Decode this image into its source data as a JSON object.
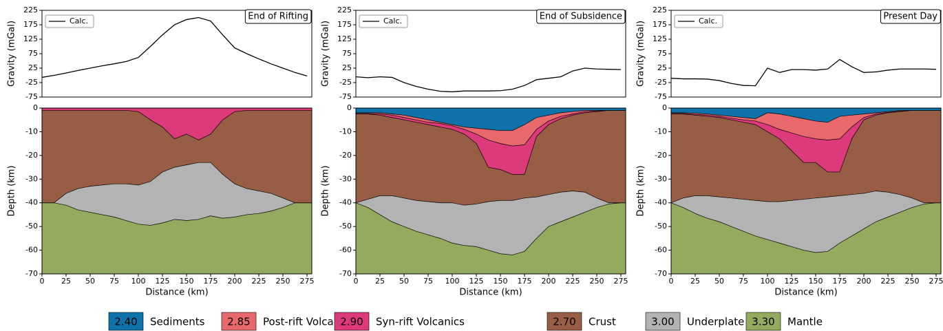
{
  "chart_data": [
    {
      "type": "line",
      "ylabel": "Gravity (mGal)",
      "annotation": "End of Rifting",
      "legend_position": "upper left",
      "x": [
        0,
        12.5,
        25,
        37.5,
        50,
        62.5,
        75,
        87.5,
        100,
        112.5,
        125,
        137.5,
        150,
        162.5,
        175,
        187.5,
        200,
        212.5,
        225,
        237.5,
        250,
        262.5,
        275
      ],
      "series": [
        {
          "name": "Calc.",
          "color": "#000000",
          "values": [
            -7,
            0,
            8,
            17,
            25,
            33,
            40,
            48,
            62,
            100,
            140,
            175,
            193,
            200,
            188,
            140,
            95,
            75,
            57,
            40,
            25,
            10,
            -2
          ]
        }
      ],
      "xlim": [
        0,
        280
      ],
      "ylim": [
        -75,
        225
      ],
      "yticks": [
        -75,
        -25,
        25,
        75,
        125,
        175,
        225
      ]
    },
    {
      "type": "section",
      "xlabel": "Distance (km)",
      "ylabel": "Depth (km)",
      "color": "#94aa5e",
      "x": [
        0,
        12.5,
        25,
        37.5,
        50,
        62.5,
        75,
        87.5,
        100,
        112.5,
        125,
        137.5,
        150,
        162.5,
        175,
        187.5,
        200,
        212.5,
        225,
        237.5,
        250,
        262.5,
        275
      ],
      "layers": [
        {
          "color": "#b3b3b3",
          "base": [
            -40,
            -40,
            -41,
            -43,
            -44,
            -45,
            -46,
            -47.5,
            -49,
            -49.5,
            -48.5,
            -47,
            -47.5,
            -47,
            -45.5,
            -46.5,
            -46,
            -45,
            -44.5,
            -43.5,
            -42,
            -40,
            -40
          ]
        },
        {
          "color": "#985e45",
          "base": [
            -40,
            -40,
            -36,
            -34,
            -33,
            -32.5,
            -32,
            -32,
            -32.5,
            -31,
            -27,
            -25,
            -24,
            -23,
            -23,
            -28,
            -32,
            -34,
            -35,
            -36,
            -38,
            -40,
            -40
          ]
        },
        {
          "color": "#dc3a7a",
          "base": [
            -1,
            -1,
            -1,
            -1,
            -1,
            -1,
            -1,
            -1,
            -1.5,
            -5,
            -8,
            -13,
            -11,
            -13.5,
            -11,
            -5,
            -1.5,
            -1,
            -1,
            -1,
            -1,
            -1,
            -1
          ]
        }
      ],
      "xlim": [
        0,
        280
      ],
      "ylim": [
        -70,
        0
      ],
      "xticks": [
        0,
        25,
        50,
        75,
        100,
        125,
        150,
        175,
        200,
        225,
        250,
        275
      ],
      "yticks": [
        -70,
        -60,
        -50,
        -40,
        -30,
        -20,
        -10,
        0
      ]
    },
    {
      "type": "line",
      "ylabel": "Gravity (mGal)",
      "annotation": "End of Subsidence",
      "legend_position": "upper left",
      "x": [
        0,
        12.5,
        25,
        37.5,
        50,
        62.5,
        75,
        87.5,
        100,
        112.5,
        125,
        137.5,
        150,
        162.5,
        175,
        187.5,
        200,
        212.5,
        225,
        237.5,
        250,
        262.5,
        275
      ],
      "series": [
        {
          "name": "Calc.",
          "color": "#000000",
          "values": [
            -5,
            -8,
            -5,
            -7,
            -25,
            -38,
            -48,
            -55,
            -57,
            -54,
            -54,
            -54,
            -53,
            -48,
            -35,
            -15,
            -10,
            -5,
            15,
            25,
            22,
            21,
            20
          ]
        }
      ],
      "xlim": [
        0,
        280
      ],
      "ylim": [
        -75,
        225
      ],
      "yticks": [
        -75,
        -25,
        25,
        75,
        125,
        175,
        225
      ]
    },
    {
      "type": "section",
      "xlabel": "Distance (km)",
      "ylabel": "Depth (km)",
      "color": "#94aa5e",
      "x": [
        0,
        12.5,
        25,
        37.5,
        50,
        62.5,
        75,
        87.5,
        100,
        112.5,
        125,
        137.5,
        150,
        162.5,
        175,
        187.5,
        200,
        212.5,
        225,
        237.5,
        250,
        262.5,
        275
      ],
      "layers": [
        {
          "color": "#b3b3b3",
          "base": [
            -40,
            -42,
            -45,
            -48,
            -50,
            -52,
            -53.5,
            -55,
            -57,
            -58,
            -58.5,
            -60,
            -61.5,
            -62,
            -60.5,
            -55,
            -50,
            -48,
            -46,
            -44,
            -42,
            -40.5,
            -40
          ]
        },
        {
          "color": "#985e45",
          "base": [
            -40,
            -38.5,
            -37,
            -37,
            -38,
            -39,
            -39.5,
            -40,
            -40,
            -41,
            -40.5,
            -39.5,
            -39,
            -39,
            -38,
            -37.5,
            -36.5,
            -35.5,
            -35,
            -35.5,
            -38,
            -40,
            -40
          ]
        },
        {
          "color": "#dc3a7a",
          "base": [
            -2.5,
            -2.5,
            -3,
            -4,
            -5,
            -6,
            -7,
            -8,
            -9,
            -11,
            -15,
            -25,
            -26,
            -28,
            -28,
            -12,
            -7,
            -4.5,
            -3,
            -2,
            -1.5,
            -1,
            -1
          ]
        },
        {
          "color": "#e8696b",
          "base": [
            -2.3,
            -2.3,
            -2.5,
            -3,
            -4,
            -5,
            -6,
            -6.5,
            -7.5,
            -9,
            -11,
            -13.5,
            -15,
            -16,
            -15.5,
            -9,
            -5.5,
            -3.5,
            -2.5,
            -1.5,
            -1.2,
            -1,
            -1
          ]
        },
        {
          "color": "#0f72aa",
          "base": [
            -2,
            -2,
            -2,
            -2.5,
            -3,
            -4,
            -5,
            -6,
            -7,
            -8,
            -8.5,
            -9,
            -9.5,
            -9.5,
            -7,
            -4,
            -3,
            -2,
            -1.5,
            -1,
            -1,
            -1,
            -1
          ]
        }
      ],
      "xlim": [
        0,
        280
      ],
      "ylim": [
        -70,
        0
      ],
      "xticks": [
        0,
        25,
        50,
        75,
        100,
        125,
        150,
        175,
        200,
        225,
        250,
        275
      ],
      "yticks": [
        -70,
        -60,
        -50,
        -40,
        -30,
        -20,
        -10,
        0
      ]
    },
    {
      "type": "line",
      "ylabel": "Gravity (mGal)",
      "annotation": "Present Day",
      "legend_position": "upper left",
      "x": [
        0,
        12.5,
        25,
        37.5,
        50,
        62.5,
        75,
        87.5,
        100,
        112.5,
        125,
        137.5,
        150,
        162.5,
        175,
        187.5,
        200,
        212.5,
        225,
        237.5,
        250,
        262.5,
        275
      ],
      "series": [
        {
          "name": "Calc.",
          "color": "#000000",
          "values": [
            -10,
            -12,
            -12,
            -13,
            -18,
            -28,
            -35,
            -36,
            25,
            10,
            20,
            20,
            18,
            22,
            55,
            30,
            10,
            12,
            18,
            22,
            22,
            22,
            21
          ]
        }
      ],
      "xlim": [
        0,
        280
      ],
      "ylim": [
        -75,
        225
      ],
      "yticks": [
        -75,
        -25,
        25,
        75,
        125,
        175,
        225
      ]
    },
    {
      "type": "section",
      "xlabel": "Distance (km)",
      "ylabel": "Depth (km)",
      "color": "#94aa5e",
      "x": [
        0,
        12.5,
        25,
        37.5,
        50,
        62.5,
        75,
        87.5,
        100,
        112.5,
        125,
        137.5,
        150,
        162.5,
        175,
        187.5,
        200,
        212.5,
        225,
        237.5,
        250,
        262.5,
        275
      ],
      "layers": [
        {
          "color": "#b3b3b3",
          "base": [
            -40,
            -42,
            -44.5,
            -46.5,
            -48,
            -50,
            -52,
            -54,
            -55.5,
            -57,
            -58.5,
            -60,
            -61,
            -60.5,
            -57,
            -54,
            -51,
            -48,
            -46,
            -44,
            -42,
            -40.5,
            -40
          ]
        },
        {
          "color": "#985e45",
          "base": [
            -40,
            -38,
            -37,
            -37,
            -37.5,
            -38,
            -38.5,
            -39,
            -39.5,
            -39.5,
            -39,
            -38.5,
            -38,
            -37.5,
            -37,
            -36.5,
            -36,
            -35,
            -35.5,
            -36.5,
            -38,
            -40,
            -40
          ]
        },
        {
          "color": "#dc3a7a",
          "base": [
            -2.5,
            -2.5,
            -3,
            -3.5,
            -4,
            -5,
            -6,
            -7,
            -10,
            -13,
            -18,
            -23,
            -23,
            -27,
            -27,
            -13,
            -5,
            -3,
            -2,
            -1.5,
            -1,
            -1,
            -1
          ]
        },
        {
          "color": "#e8696b",
          "base": [
            -2.3,
            -2.3,
            -2.7,
            -3,
            -3.5,
            -4.3,
            -5,
            -5.5,
            -7,
            -9,
            -10.5,
            -12,
            -13,
            -13.5,
            -13,
            -8,
            -4,
            -2.5,
            -1.8,
            -1.3,
            -1,
            -1,
            -1
          ]
        },
        {
          "color": "#0f72aa",
          "base": [
            -2,
            -2,
            -2.2,
            -2.5,
            -3,
            -3.5,
            -4,
            -4.5,
            -2,
            -2.5,
            -3.5,
            -4.5,
            -5.5,
            -6,
            -3.5,
            -3,
            -2.5,
            -2,
            -1.5,
            -1,
            -1,
            -1,
            -1
          ]
        }
      ],
      "xlim": [
        0,
        280
      ],
      "ylim": [
        -70,
        0
      ],
      "xticks": [
        0,
        25,
        50,
        75,
        100,
        125,
        150,
        175,
        200,
        225,
        250,
        275
      ],
      "yticks": [
        -70,
        -60,
        -50,
        -40,
        -30,
        -20,
        -10,
        0
      ]
    }
  ],
  "legend": [
    {
      "density": "2.40",
      "name": "Sediments",
      "color": "#0f72aa"
    },
    {
      "density": "2.85",
      "name": "Post-rift Volcanics",
      "color": "#e8696b"
    },
    {
      "density": "2.90",
      "name": "Syn-rift Volcanics",
      "color": "#dc3a7a"
    },
    {
      "density": "2.70",
      "name": "Crust",
      "color": "#985e45"
    },
    {
      "density": "3.00",
      "name": "Underplate",
      "color": "#b3b3b3"
    },
    {
      "density": "3.30",
      "name": "Mantle",
      "color": "#94aa5e"
    }
  ]
}
